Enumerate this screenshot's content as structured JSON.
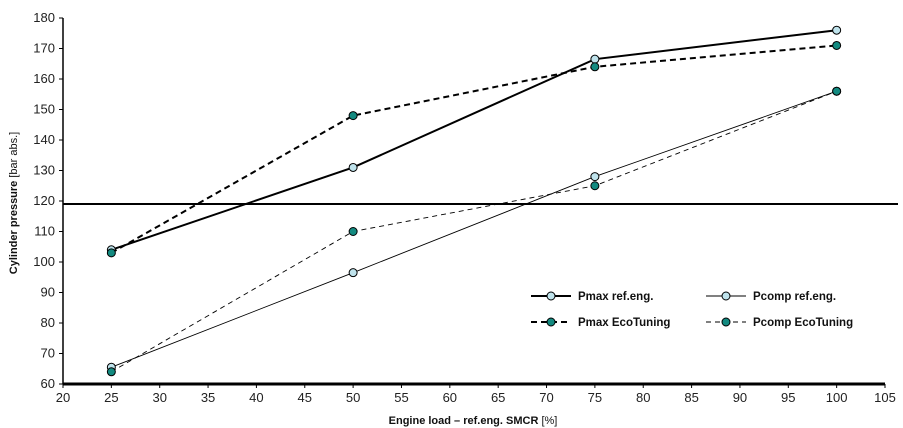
{
  "chart_data": {
    "type": "line",
    "xlabel": {
      "main": "Engine load – ref.eng. SMCR",
      "unit": " [%]"
    },
    "ylabel": {
      "main": "Cylinder pressure",
      "unit": " [bar abs.]"
    },
    "xlim": [
      20,
      105
    ],
    "ylim": [
      60,
      180
    ],
    "xticks": [
      "20",
      "25",
      "30",
      "35",
      "40",
      "45",
      "50",
      "55",
      "60",
      "65",
      "70",
      "75",
      "80",
      "85",
      "90",
      "95",
      "100",
      "105"
    ],
    "yticks": [
      "60",
      "70",
      "80",
      "90",
      "100",
      "110",
      "120",
      "130",
      "140",
      "150",
      "160",
      "170",
      "180"
    ],
    "reference_line_y": 119,
    "legend_position": "bottom-right",
    "series": [
      {
        "name": "Pmax ref.eng.",
        "style": "solid-thick",
        "marker_color": "#bfe3ec",
        "x": [
          25,
          50,
          75,
          100
        ],
        "y": [
          104,
          131,
          166.5,
          176
        ]
      },
      {
        "name": "Pcomp ref.eng.",
        "style": "solid-thin",
        "marker_color": "#bfe3ec",
        "x": [
          25,
          50,
          75,
          100
        ],
        "y": [
          65.5,
          96.5,
          128,
          156
        ]
      },
      {
        "name": "Pmax EcoTuning",
        "style": "dashed-thick",
        "marker_color": "#138a80",
        "x": [
          25,
          50,
          75,
          100
        ],
        "y": [
          103,
          148,
          164,
          171
        ]
      },
      {
        "name": "Pcomp EcoTuning",
        "style": "dashed-thin",
        "marker_color": "#138a80",
        "x": [
          25,
          50,
          75,
          100
        ],
        "y": [
          64,
          110,
          125,
          156
        ]
      }
    ]
  }
}
